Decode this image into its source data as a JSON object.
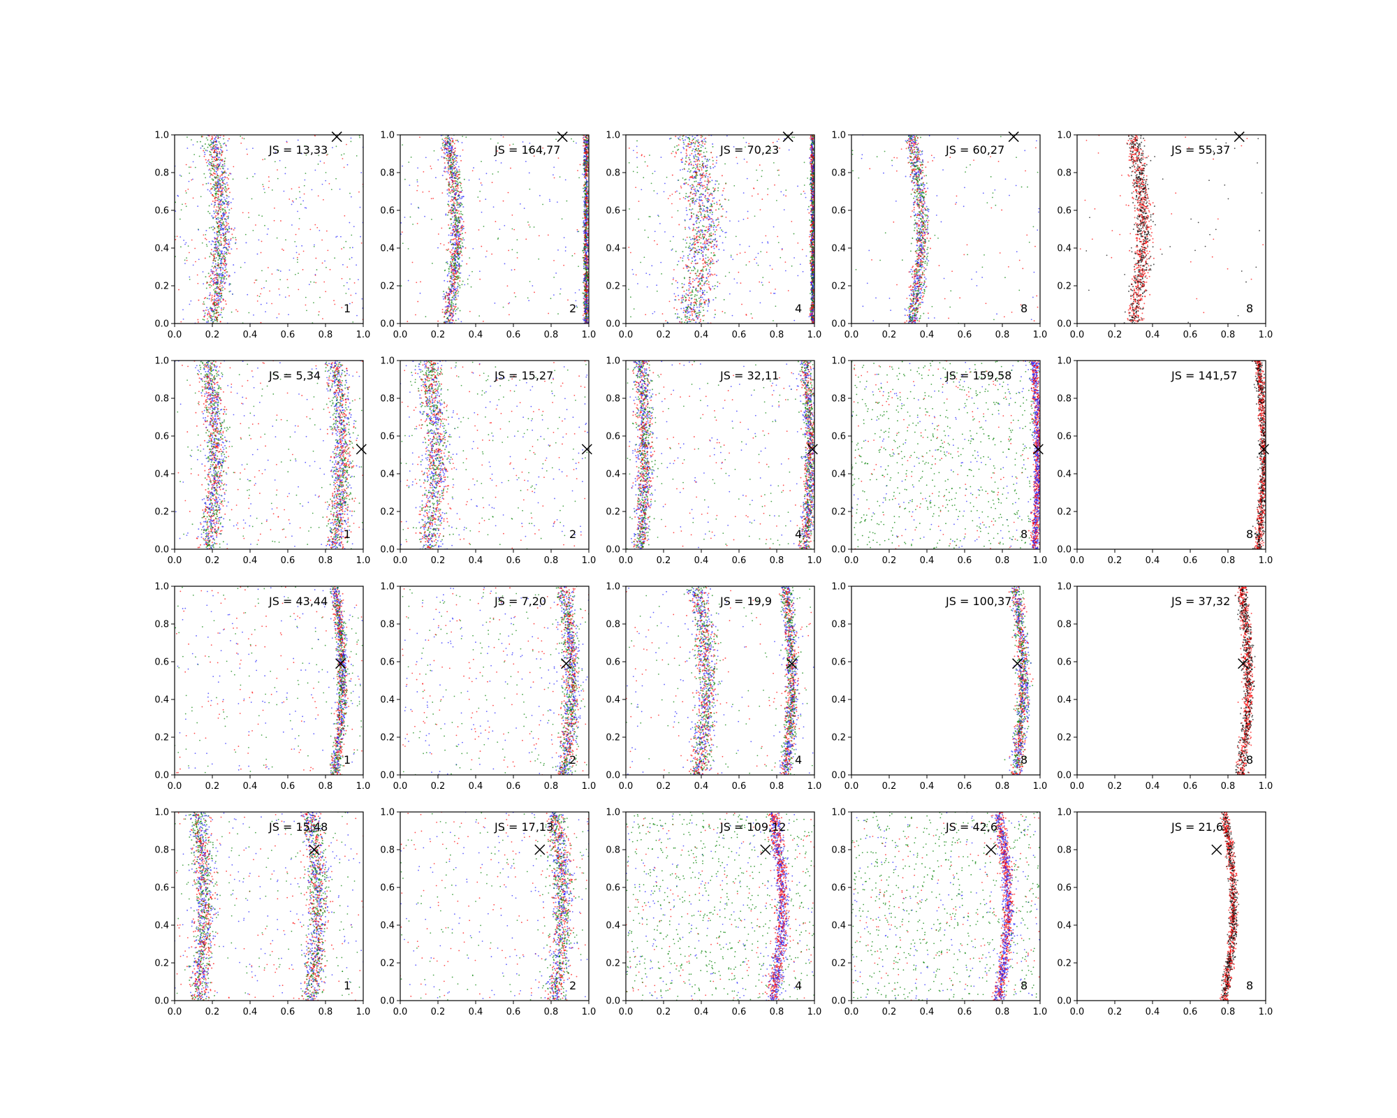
{
  "chart_data": {
    "type": "scatter",
    "layout": {
      "rows": 4,
      "cols": 5
    },
    "xlim": [
      0,
      1
    ],
    "ylim": [
      0,
      1
    ],
    "ticks": [
      "0.0",
      "0.2",
      "0.4",
      "0.6",
      "0.8",
      "1.0"
    ],
    "grid": false,
    "colors": {
      "blue": "#1f1fff",
      "red": "#ff0000",
      "green": "#008000",
      "black": "#000000"
    },
    "panels": [
      {
        "row": 0,
        "col": 0,
        "js_text": "JS = 13,33",
        "number": "1",
        "marker": [
          0.86,
          0.99
        ],
        "bands": [
          {
            "kind": "curve",
            "base": 0.2,
            "amp": 0.05,
            "freq": 1.6,
            "phase": 0,
            "width": 0.05
          }
        ],
        "colors": [
          "blue",
          "red",
          "green"
        ],
        "dominant": null,
        "uniform_frac": 0.55
      },
      {
        "row": 0,
        "col": 1,
        "js_text": "JS = 164,77",
        "number": "2",
        "marker": [
          0.86,
          0.99
        ],
        "bands": [
          {
            "kind": "curve",
            "base": 0.25,
            "amp": 0.05,
            "freq": 1.6,
            "phase": 0,
            "width": 0.035
          },
          {
            "kind": "curve",
            "base": 0.985,
            "amp": 0.0,
            "freq": 0,
            "phase": 0,
            "width": 0.012
          }
        ],
        "colors": [
          "blue",
          "green",
          "red"
        ],
        "dominant": null,
        "uniform_frac": 0.35
      },
      {
        "row": 0,
        "col": 2,
        "js_text": "JS = 70,23",
        "number": "4",
        "marker": [
          0.86,
          0.99
        ],
        "bands": [
          {
            "kind": "curve",
            "base": 0.35,
            "amp": 0.06,
            "freq": 1.6,
            "phase": 0,
            "width": 0.09
          },
          {
            "kind": "curve",
            "base": 0.99,
            "amp": 0.0,
            "freq": 0,
            "phase": 0,
            "width": 0.01
          }
        ],
        "colors": [
          "blue",
          "red",
          "green"
        ],
        "dominant": null,
        "uniform_frac": 0.45
      },
      {
        "row": 0,
        "col": 3,
        "js_text": "JS = 60,27",
        "number": "8",
        "marker": [
          0.86,
          0.99
        ],
        "bands": [
          {
            "kind": "curve",
            "base": 0.32,
            "amp": 0.05,
            "freq": 1.6,
            "phase": 0,
            "width": 0.035
          }
        ],
        "colors": [
          "red",
          "green",
          "blue"
        ],
        "dominant": null,
        "uniform_frac": 0.2
      },
      {
        "row": 0,
        "col": 4,
        "js_text": "JS = 55,37",
        "number": "8",
        "marker": [
          0.86,
          0.99
        ],
        "bands": [
          {
            "kind": "curve",
            "base": 0.3,
            "amp": 0.05,
            "freq": 1.6,
            "phase": 0,
            "width": 0.04
          }
        ],
        "colors": [
          "red",
          "black"
        ],
        "dominant": null,
        "uniform_frac": 0.1
      },
      {
        "row": 1,
        "col": 0,
        "js_text": "JS = 5,34",
        "number": "1",
        "marker": [
          0.99,
          0.53
        ],
        "bands": [
          {
            "kind": "curve",
            "base": 0.18,
            "amp": 0.04,
            "freq": 1.6,
            "phase": 0,
            "width": 0.05
          },
          {
            "kind": "curve",
            "base": 0.85,
            "amp": 0.04,
            "freq": 1.6,
            "phase": 0,
            "width": 0.05
          }
        ],
        "colors": [
          "blue",
          "red",
          "green"
        ],
        "dominant": null,
        "uniform_frac": 0.5
      },
      {
        "row": 1,
        "col": 1,
        "js_text": "JS = 15,27",
        "number": "2",
        "marker": [
          0.99,
          0.53
        ],
        "bands": [
          {
            "kind": "curve",
            "base": 0.15,
            "amp": 0.04,
            "freq": 1.6,
            "phase": 0,
            "width": 0.06
          }
        ],
        "colors": [
          "blue",
          "red",
          "green"
        ],
        "dominant": null,
        "uniform_frac": 0.6
      },
      {
        "row": 1,
        "col": 2,
        "js_text": "JS = 32,11",
        "number": "4",
        "marker": [
          0.99,
          0.53
        ],
        "bands": [
          {
            "kind": "curve",
            "base": 0.95,
            "amp": 0.03,
            "freq": 1.6,
            "phase": 0,
            "width": 0.03
          },
          {
            "kind": "curve",
            "base": 0.08,
            "amp": 0.02,
            "freq": 1.6,
            "phase": 0,
            "width": 0.04
          }
        ],
        "colors": [
          "red",
          "blue",
          "green"
        ],
        "dominant": null,
        "uniform_frac": 0.45
      },
      {
        "row": 1,
        "col": 3,
        "js_text": "JS = 159,58",
        "number": "8",
        "marker": [
          0.99,
          0.53
        ],
        "bands": [
          {
            "kind": "curve",
            "base": 0.97,
            "amp": 0.02,
            "freq": 1.6,
            "phase": 0,
            "width": 0.02
          }
        ],
        "colors": [
          "red",
          "blue"
        ],
        "dominant": "green",
        "uniform_frac": 0.4
      },
      {
        "row": 1,
        "col": 4,
        "js_text": "JS = 141,57",
        "number": "8",
        "marker": [
          0.99,
          0.53
        ],
        "bands": [
          {
            "kind": "curve",
            "base": 0.96,
            "amp": 0.03,
            "freq": 1.6,
            "phase": 0,
            "width": 0.02
          }
        ],
        "colors": [
          "red",
          "black"
        ],
        "dominant": null,
        "uniform_frac": 0.0
      },
      {
        "row": 2,
        "col": 0,
        "js_text": "JS = 43,44",
        "number": "1",
        "marker": [
          0.88,
          0.59
        ],
        "bands": [
          {
            "kind": "curve",
            "base": 0.85,
            "amp": 0.04,
            "freq": 1.6,
            "phase": 0,
            "width": 0.025
          }
        ],
        "colors": [
          "green",
          "red",
          "blue"
        ],
        "dominant": null,
        "uniform_frac": 0.5
      },
      {
        "row": 2,
        "col": 1,
        "js_text": "JS = 7,20",
        "number": "2",
        "marker": [
          0.88,
          0.59
        ],
        "bands": [
          {
            "kind": "curve",
            "base": 0.87,
            "amp": 0.04,
            "freq": 1.6,
            "phase": 0,
            "width": 0.04
          }
        ],
        "colors": [
          "red",
          "blue",
          "green"
        ],
        "dominant": null,
        "uniform_frac": 0.65
      },
      {
        "row": 2,
        "col": 2,
        "js_text": "JS = 19,9",
        "number": "4",
        "marker": [
          0.88,
          0.59
        ],
        "bands": [
          {
            "kind": "curve",
            "base": 0.38,
            "amp": 0.05,
            "freq": 1.6,
            "phase": 0,
            "width": 0.05
          },
          {
            "kind": "curve",
            "base": 0.85,
            "amp": 0.03,
            "freq": 1.6,
            "phase": 0,
            "width": 0.03
          }
        ],
        "colors": [
          "red",
          "blue",
          "green"
        ],
        "dominant": null,
        "uniform_frac": 0.35
      },
      {
        "row": 2,
        "col": 3,
        "js_text": "JS = 100,37",
        "number": "8",
        "marker": [
          0.88,
          0.59
        ],
        "bands": [
          {
            "kind": "curve",
            "base": 0.87,
            "amp": 0.04,
            "freq": 1.6,
            "phase": 0,
            "width": 0.03
          }
        ],
        "colors": [
          "blue",
          "green",
          "red"
        ],
        "dominant": null,
        "uniform_frac": 0.0
      },
      {
        "row": 2,
        "col": 4,
        "js_text": "JS = 37,32",
        "number": "8",
        "marker": [
          0.88,
          0.59
        ],
        "bands": [
          {
            "kind": "curve",
            "base": 0.87,
            "amp": 0.04,
            "freq": 1.6,
            "phase": 0,
            "width": 0.025
          }
        ],
        "colors": [
          "red",
          "black"
        ],
        "dominant": null,
        "uniform_frac": 0.0
      },
      {
        "row": 3,
        "col": 0,
        "js_text": "JS = 15,48",
        "number": "1",
        "marker": [
          0.74,
          0.8
        ],
        "bands": [
          {
            "kind": "curve",
            "base": 0.12,
            "amp": 0.04,
            "freq": 1.6,
            "phase": 0,
            "width": 0.05
          },
          {
            "kind": "curve",
            "base": 0.72,
            "amp": 0.04,
            "freq": 1.6,
            "phase": 0,
            "width": 0.05
          }
        ],
        "colors": [
          "blue",
          "red",
          "green"
        ],
        "dominant": null,
        "uniform_frac": 0.55
      },
      {
        "row": 3,
        "col": 1,
        "js_text": "JS = 17,13",
        "number": "2",
        "marker": [
          0.74,
          0.8
        ],
        "bands": [
          {
            "kind": "curve",
            "base": 0.82,
            "amp": 0.04,
            "freq": 1.6,
            "phase": 0,
            "width": 0.05
          }
        ],
        "colors": [
          "green",
          "red",
          "blue"
        ],
        "dominant": null,
        "uniform_frac": 0.55
      },
      {
        "row": 3,
        "col": 2,
        "js_text": "JS = 109,12",
        "number": "4",
        "marker": [
          0.74,
          0.8
        ],
        "bands": [
          {
            "kind": "curve",
            "base": 0.78,
            "amp": 0.05,
            "freq": 1.6,
            "phase": 0,
            "width": 0.03
          }
        ],
        "colors": [
          "blue",
          "red"
        ],
        "dominant": "green",
        "uniform_frac": 0.45
      },
      {
        "row": 3,
        "col": 3,
        "js_text": "JS = 42,6",
        "number": "8",
        "marker": [
          0.74,
          0.8
        ],
        "bands": [
          {
            "kind": "curve",
            "base": 0.78,
            "amp": 0.05,
            "freq": 1.6,
            "phase": 0,
            "width": 0.025
          }
        ],
        "colors": [
          "blue",
          "red"
        ],
        "dominant": "green",
        "uniform_frac": 0.45
      },
      {
        "row": 3,
        "col": 4,
        "js_text": "JS = 21,6",
        "number": "8",
        "marker": [
          0.74,
          0.8
        ],
        "bands": [
          {
            "kind": "curve",
            "base": 0.78,
            "amp": 0.05,
            "freq": 1.6,
            "phase": 0,
            "width": 0.02
          }
        ],
        "colors": [
          "red",
          "black"
        ],
        "dominant": null,
        "uniform_frac": 0.0
      }
    ]
  }
}
